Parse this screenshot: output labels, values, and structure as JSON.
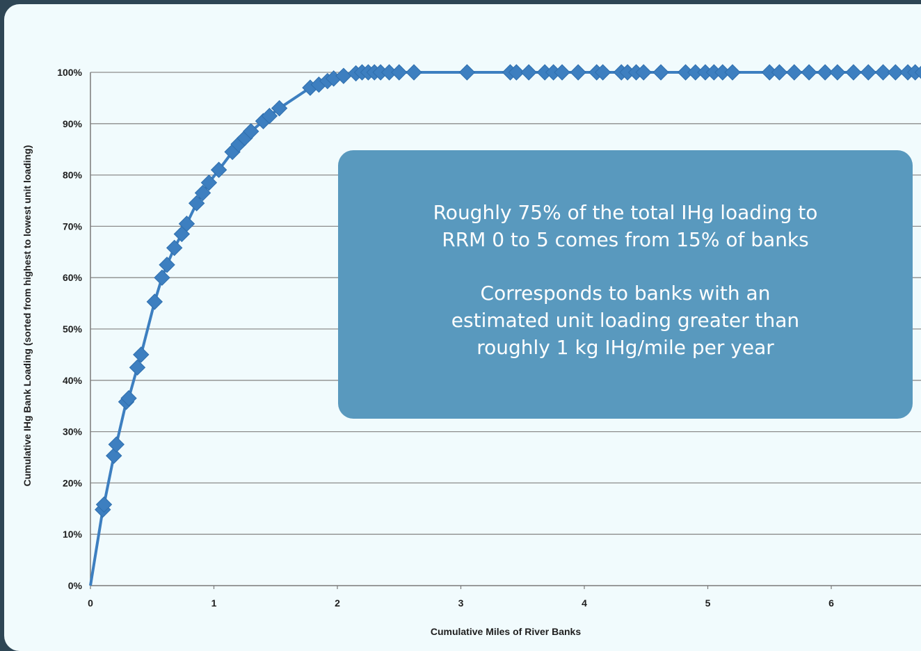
{
  "chart_data": {
    "type": "scatter",
    "mode": "line+markers",
    "title": "",
    "xlabel": "Cumulative Miles of River Banks",
    "ylabel": "Cumulative IHg Bank Loading (sorted from highest to lowest unit loading)",
    "xlim": [
      0,
      7
    ],
    "ylim": [
      0,
      100
    ],
    "x_ticks": [
      "0",
      "1",
      "2",
      "3",
      "4",
      "5",
      "6"
    ],
    "y_ticks": [
      "0%",
      "10%",
      "20%",
      "30%",
      "40%",
      "50%",
      "60%",
      "70%",
      "80%",
      "90%",
      "100%"
    ],
    "grid": "horizontal",
    "legend": "none",
    "series": [
      {
        "color": "#3d7fc0",
        "marker": "diamond",
        "points": [
          [
            0,
            0
          ],
          [
            0.1,
            14.8
          ],
          [
            0.11,
            15.8
          ],
          [
            0.19,
            25.3
          ],
          [
            0.21,
            27.5
          ],
          [
            0.29,
            35.8
          ],
          [
            0.31,
            36.5
          ],
          [
            0.38,
            42.5
          ],
          [
            0.41,
            45
          ],
          [
            0.52,
            55.3
          ],
          [
            0.58,
            60
          ],
          [
            0.62,
            62.5
          ],
          [
            0.68,
            65.8
          ],
          [
            0.74,
            68.5
          ],
          [
            0.78,
            70.5
          ],
          [
            0.86,
            74.5
          ],
          [
            0.91,
            76.5
          ],
          [
            0.96,
            78.5
          ],
          [
            1.04,
            81
          ],
          [
            1.15,
            84.5
          ],
          [
            1.2,
            86
          ],
          [
            1.25,
            87.2
          ],
          [
            1.3,
            88.5
          ],
          [
            1.4,
            90.5
          ],
          [
            1.45,
            91.5
          ],
          [
            1.53,
            93
          ],
          [
            1.78,
            97
          ],
          [
            1.85,
            97.6
          ],
          [
            1.92,
            98.3
          ],
          [
            1.97,
            98.8
          ],
          [
            2.05,
            99.3
          ],
          [
            2.15,
            99.8
          ],
          [
            2.2,
            100
          ],
          [
            2.25,
            100
          ],
          [
            2.3,
            100
          ],
          [
            2.35,
            100
          ],
          [
            2.42,
            100
          ],
          [
            2.5,
            100
          ],
          [
            2.62,
            100
          ],
          [
            3.05,
            100
          ],
          [
            3.4,
            100
          ],
          [
            3.45,
            100
          ],
          [
            3.55,
            100
          ],
          [
            3.68,
            100
          ],
          [
            3.75,
            100
          ],
          [
            3.82,
            100
          ],
          [
            3.95,
            100
          ],
          [
            4.1,
            100
          ],
          [
            4.15,
            100
          ],
          [
            4.3,
            100
          ],
          [
            4.35,
            100
          ],
          [
            4.42,
            100
          ],
          [
            4.48,
            100
          ],
          [
            4.62,
            100
          ],
          [
            4.82,
            100
          ],
          [
            4.9,
            100
          ],
          [
            4.98,
            100
          ],
          [
            5.05,
            100
          ],
          [
            5.12,
            100
          ],
          [
            5.2,
            100
          ],
          [
            5.5,
            100
          ],
          [
            5.58,
            100
          ],
          [
            5.7,
            100
          ],
          [
            5.82,
            100
          ],
          [
            5.95,
            100
          ],
          [
            6.05,
            100
          ],
          [
            6.18,
            100
          ],
          [
            6.3,
            100
          ],
          [
            6.42,
            100
          ],
          [
            6.52,
            100
          ],
          [
            6.62,
            100
          ],
          [
            6.68,
            100
          ],
          [
            6.74,
            100
          ]
        ]
      }
    ]
  },
  "callout": {
    "line1": "Roughly 75% of the total IHg loading to",
    "line2": "RRM 0 to 5 comes from 15% of banks",
    "line3": "Corresponds to banks with an",
    "line4": "estimated unit loading greater than",
    "line5": "roughly 1 kg IHg/mile per year"
  }
}
